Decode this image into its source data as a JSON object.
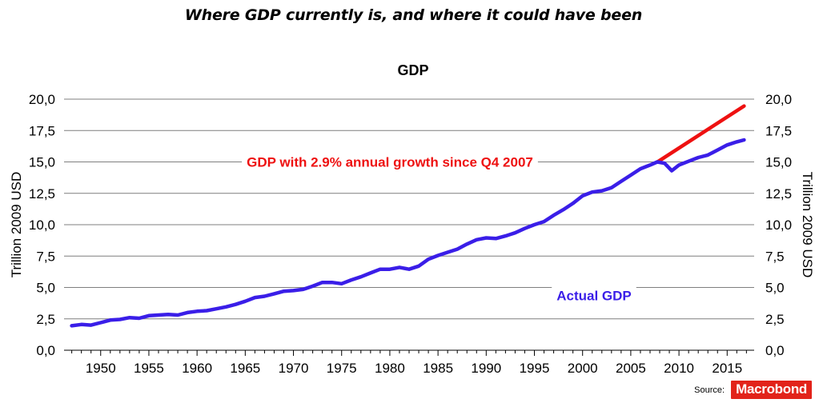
{
  "headline": "Where GDP currently is, and where it could have been",
  "source": {
    "label": "Source:",
    "brand": "Macrobond"
  },
  "colors": {
    "actual": "#3a1ee8",
    "trend": "#ee1111",
    "trend_label": "#ee1111",
    "actual_label": "#3a1ee8",
    "grid": "#7f7f7f"
  },
  "chart_data": {
    "type": "line",
    "title": "GDP",
    "ylabel_left": "Trillion 2009 USD",
    "ylabel_right": "Trillion 2009 USD",
    "ylim": [
      0,
      20
    ],
    "xlim": [
      1946.2,
      2017.8
    ],
    "yticks": [
      0,
      2.5,
      5,
      7.5,
      10,
      12.5,
      15,
      17.5,
      20
    ],
    "ytick_labels": [
      "0,0",
      "2,5",
      "5,0",
      "7,5",
      "10,0",
      "12,5",
      "15,0",
      "17,5",
      "20,0"
    ],
    "xticks": [
      1950,
      1955,
      1960,
      1965,
      1970,
      1975,
      1980,
      1985,
      1990,
      1995,
      2000,
      2005,
      2010,
      2015
    ],
    "xtick_labels": [
      "1950",
      "1955",
      "1960",
      "1965",
      "1970",
      "1975",
      "1980",
      "1985",
      "1990",
      "1995",
      "2000",
      "2005",
      "2010",
      "2015"
    ],
    "grid": true,
    "series": [
      {
        "name": "Actual GDP",
        "x": [
          1947,
          1948,
          1949,
          1950,
          1951,
          1952,
          1953,
          1954,
          1955,
          1956,
          1957,
          1958,
          1959,
          1960,
          1961,
          1962,
          1963,
          1964,
          1965,
          1966,
          1967,
          1968,
          1969,
          1970,
          1971,
          1972,
          1973,
          1974,
          1975,
          1976,
          1977,
          1978,
          1979,
          1980,
          1981,
          1982,
          1983,
          1984,
          1985,
          1986,
          1987,
          1988,
          1989,
          1990,
          1991,
          1992,
          1993,
          1994,
          1995,
          1996,
          1997,
          1998,
          1999,
          2000,
          2001,
          2002,
          2003,
          2004,
          2005,
          2006,
          2007,
          2007.75,
          2008.5,
          2009.25,
          2010,
          2011,
          2012,
          2013,
          2014,
          2015,
          2016,
          2016.75
        ],
        "y": [
          1.95,
          2.05,
          2.0,
          2.2,
          2.4,
          2.45,
          2.6,
          2.55,
          2.75,
          2.8,
          2.85,
          2.8,
          3.0,
          3.1,
          3.15,
          3.3,
          3.45,
          3.65,
          3.9,
          4.2,
          4.3,
          4.5,
          4.7,
          4.75,
          4.85,
          5.1,
          5.4,
          5.4,
          5.3,
          5.6,
          5.85,
          6.15,
          6.45,
          6.45,
          6.6,
          6.45,
          6.7,
          7.25,
          7.55,
          7.8,
          8.05,
          8.45,
          8.8,
          8.95,
          8.9,
          9.1,
          9.35,
          9.7,
          10.0,
          10.25,
          10.75,
          11.2,
          11.7,
          12.3,
          12.6,
          12.7,
          12.95,
          13.45,
          13.95,
          14.45,
          14.75,
          15.0,
          14.9,
          14.3,
          14.75,
          15.05,
          15.35,
          15.55,
          15.95,
          16.35,
          16.6,
          16.75
        ]
      },
      {
        "name": "GDP with 2.9% annual growth since Q4 2007",
        "x": [
          2007.75,
          2016.75
        ],
        "y": [
          14.99,
          19.45
        ]
      }
    ],
    "annotations": [
      {
        "text": "GDP with 2.9% annual growth since Q4 2007",
        "series": 1
      },
      {
        "text": "Actual GDP",
        "series": 0
      }
    ]
  }
}
